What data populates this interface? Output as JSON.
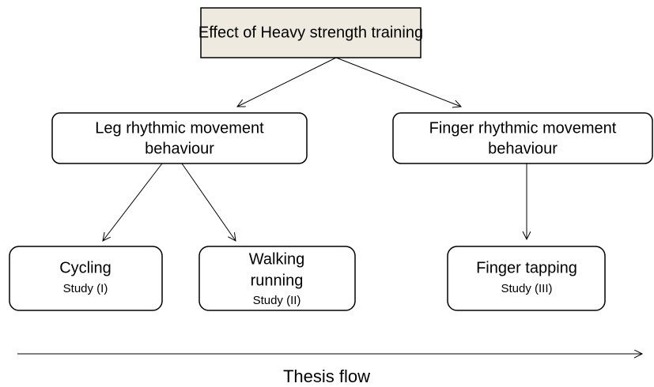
{
  "nodes": [
    {
      "lines": [
        "Effect of Heavy strength training"
      ]
    },
    {
      "lines": [
        "Leg rhythmic movement",
        "behaviour"
      ]
    },
    {
      "lines": [
        "Finger rhythmic movement",
        "behaviour"
      ]
    },
    {
      "lines": [
        "Cycling"
      ],
      "study": "Study (I)"
    },
    {
      "lines": [
        "Walking",
        "running"
      ],
      "study": "Study (II)"
    },
    {
      "lines": [
        "Finger tapping"
      ],
      "study": "Study (III)"
    }
  ],
  "flow_label": "Thesis flow"
}
